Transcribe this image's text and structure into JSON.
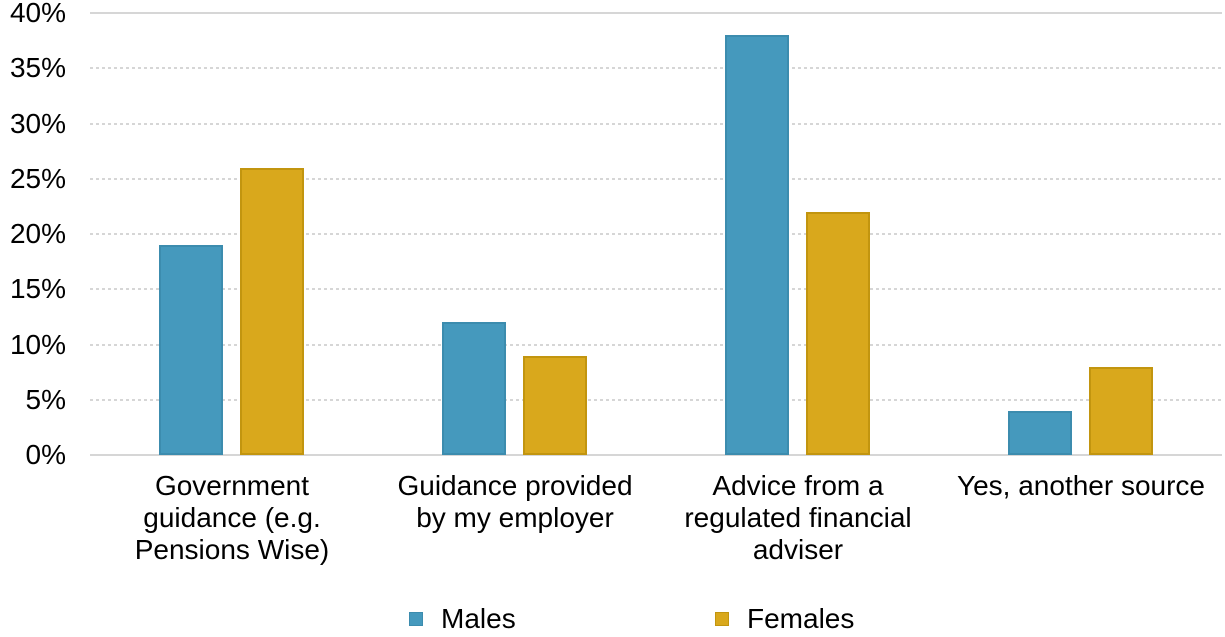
{
  "chart_data": {
    "type": "bar",
    "title": "",
    "xlabel": "",
    "ylabel": "",
    "categories": [
      "Government guidance (e.g. Pensions Wise)",
      "Guidance provided by my employer",
      "Advice from a regulated financial adviser",
      "Yes, another source"
    ],
    "categories_wrapped": [
      "Government\nguidance (e.g.\nPensions Wise)",
      "Guidance provided\nby my employer",
      "Advice from a\nregulated financial\nadviser",
      "Yes, another source"
    ],
    "series": [
      {
        "name": "Males",
        "values": [
          19,
          12,
          38,
          4
        ],
        "color": "#4599BD",
        "border_color": "#3C8CAE"
      },
      {
        "name": "Females",
        "values": [
          26,
          9,
          22,
          8
        ],
        "color": "#D9A81C",
        "border_color": "#C2950F"
      }
    ],
    "ylim": [
      0,
      40
    ],
    "ytick_step": 5,
    "ytick_labels": [
      "0%",
      "5%",
      "10%",
      "15%",
      "20%",
      "25%",
      "30%",
      "35%",
      "40%"
    ],
    "grid": "horizontal-dotted",
    "gridline_color": "#D6D6D6",
    "text_color": "#000000",
    "legend_position": "bottom"
  }
}
